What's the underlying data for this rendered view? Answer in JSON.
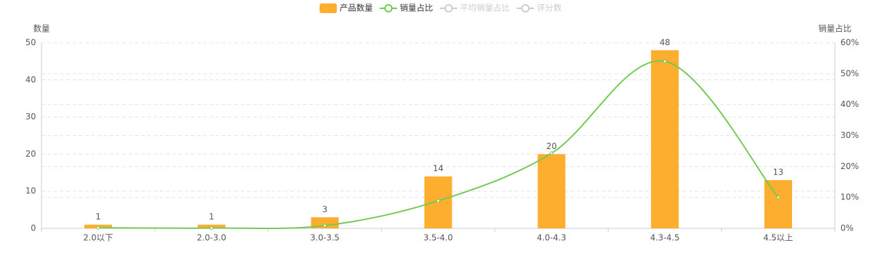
{
  "chart_data": {
    "type": "bar_line",
    "categories": [
      "2.0以下",
      "2.0-3.0",
      "3.0-3.5",
      "3.5-4.0",
      "4.0-4.3",
      "4.3-4.5",
      "4.5以上"
    ],
    "series": [
      {
        "name": "产品数量",
        "type": "bar",
        "color": "#fdae2e",
        "values": [
          1,
          1,
          3,
          14,
          20,
          48,
          13
        ]
      },
      {
        "name": "销量占比",
        "type": "line",
        "axis": "y2",
        "color": "#73c952",
        "values": [
          0.2,
          0.1,
          0.9,
          8.9,
          24.3,
          54,
          10
        ]
      }
    ],
    "hidden_series": [
      {
        "name": "平均销量占比",
        "color": "#cccccc"
      },
      {
        "name": "评分数",
        "color": "#cccccc"
      }
    ],
    "y_label": "数量",
    "y2_label": "销量占比",
    "ylim": [
      0,
      50
    ],
    "yticks": [
      0,
      10,
      20,
      30,
      40,
      50
    ],
    "y2lim": [
      0,
      60
    ],
    "y2ticks": [
      {
        "value": 0,
        "label": "0%"
      },
      {
        "value": 10,
        "label": "10%"
      },
      {
        "value": 20,
        "label": "20%"
      },
      {
        "value": 30,
        "label": "30%"
      },
      {
        "value": 40,
        "label": "40%"
      },
      {
        "value": 50,
        "label": "50%"
      },
      {
        "value": 60,
        "label": "60%"
      }
    ],
    "grid": true,
    "legend": "top"
  }
}
